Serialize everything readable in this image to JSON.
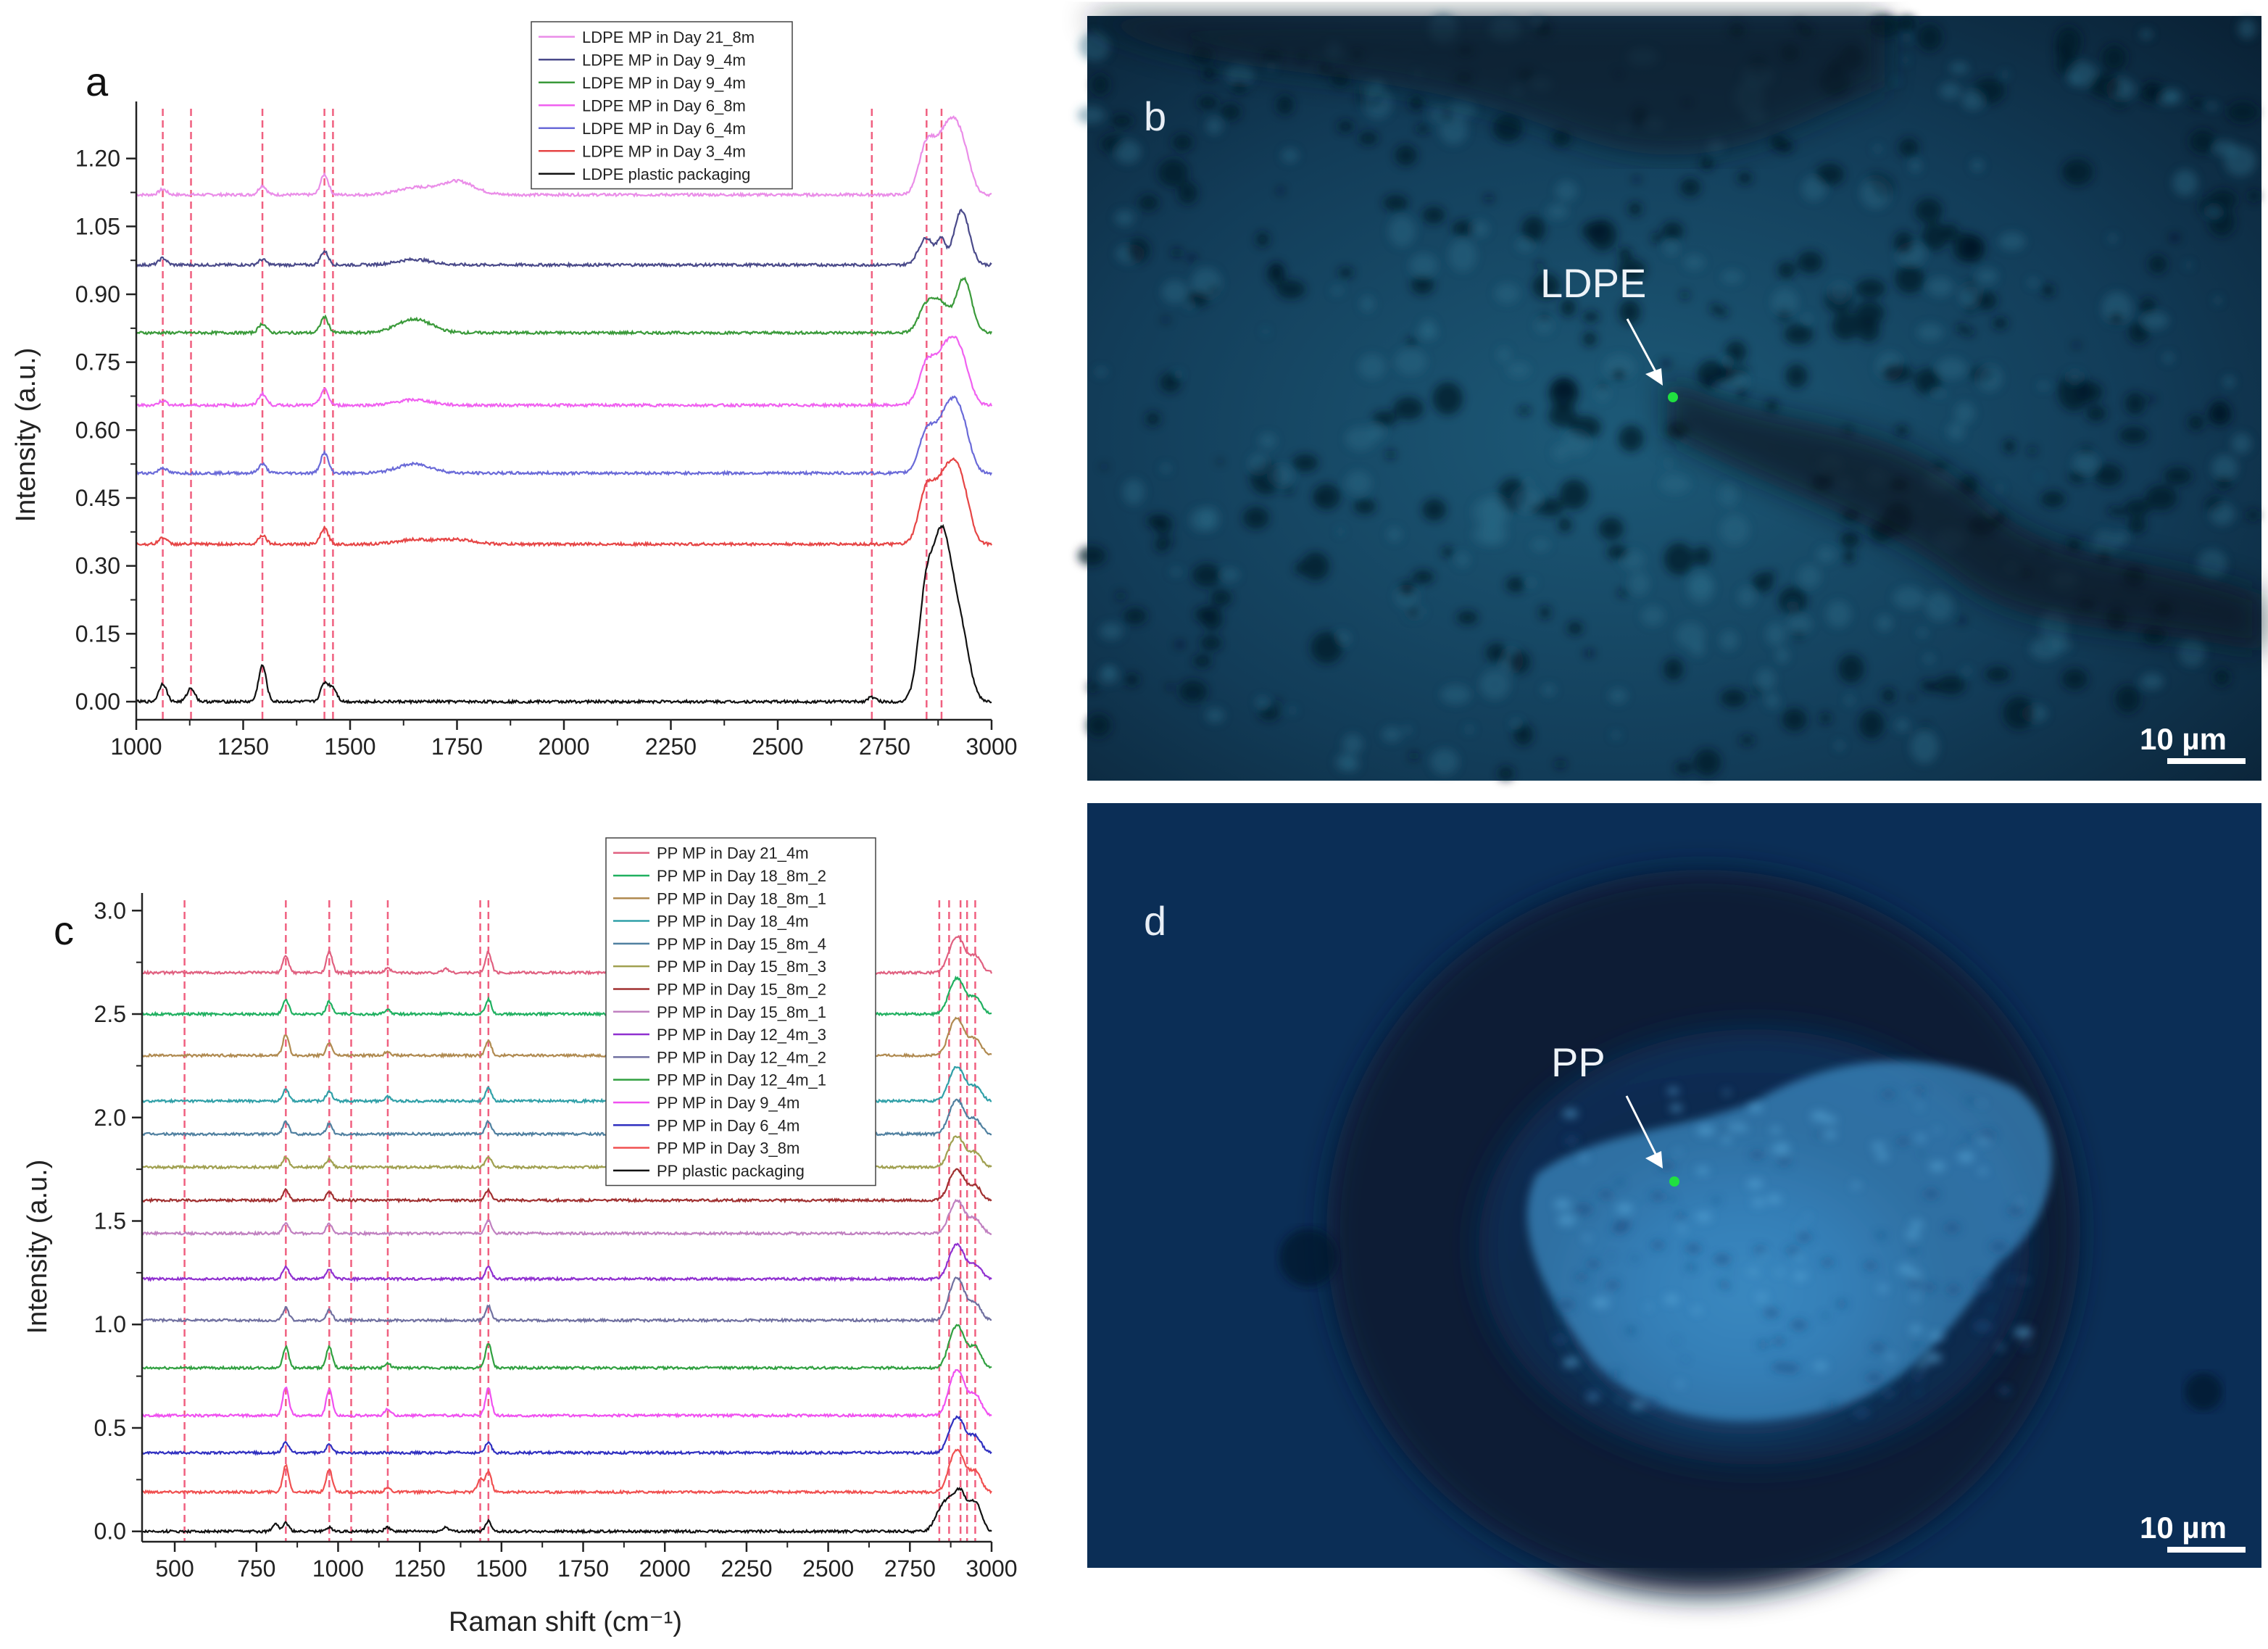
{
  "chart_data": [
    {
      "panel": "a",
      "type": "line",
      "ylabel": "Intensity (a.u.)",
      "xlim": [
        1000,
        3000
      ],
      "ylim": [
        -0.04,
        1.31
      ],
      "xticks": [
        "1000",
        "1250",
        "1500",
        "1750",
        "2000",
        "2250",
        "2500",
        "2750",
        "3000"
      ],
      "yticks": [
        "0.00",
        "0.15",
        "0.30",
        "0.45",
        "0.60",
        "0.75",
        "0.90",
        "1.05",
        "1.20"
      ],
      "reference_lines": [
        1062,
        1128,
        1295,
        1440,
        1460,
        2720,
        2848,
        2883
      ],
      "legend_position": "top-center",
      "series": [
        {
          "name": "LDPE MP in Day 21_8m",
          "color": "#ea8de8",
          "baseline": 1.12,
          "peaks": [
            [
              1062,
              0.012
            ],
            [
              1295,
              0.02
            ],
            [
              1440,
              0.045
            ],
            [
              1650,
              0.015
            ],
            [
              1750,
              0.03
            ],
            [
              2848,
              0.11
            ],
            [
              2883,
              0.09
            ],
            [
              2910,
              0.11
            ],
            [
              2935,
              0.08
            ]
          ]
        },
        {
          "name": "LDPE MP in Day 9_4m",
          "color": "#4a4a8a",
          "baseline": 0.965,
          "peaks": [
            [
              1062,
              0.015
            ],
            [
              1295,
              0.012
            ],
            [
              1440,
              0.03
            ],
            [
              1650,
              0.012
            ],
            [
              2848,
              0.06
            ],
            [
              2883,
              0.05
            ],
            [
              2930,
              0.12
            ]
          ]
        },
        {
          "name": "LDPE MP in Day 9_4m",
          "color": "#3a9a3a",
          "baseline": 0.815,
          "peaks": [
            [
              1295,
              0.02
            ],
            [
              1440,
              0.035
            ],
            [
              1650,
              0.03
            ],
            [
              2848,
              0.06
            ],
            [
              2883,
              0.06
            ],
            [
              2935,
              0.12
            ]
          ]
        },
        {
          "name": "LDPE MP in Day 6_8m",
          "color": "#f060f0",
          "baseline": 0.655,
          "peaks": [
            [
              1062,
              0.01
            ],
            [
              1295,
              0.025
            ],
            [
              1440,
              0.035
            ],
            [
              1650,
              0.012
            ],
            [
              2848,
              0.09
            ],
            [
              2883,
              0.08
            ],
            [
              2910,
              0.1
            ],
            [
              2935,
              0.07
            ]
          ]
        },
        {
          "name": "LDPE MP in Day 6_4m",
          "color": "#6a6ad8",
          "baseline": 0.505,
          "peaks": [
            [
              1062,
              0.012
            ],
            [
              1295,
              0.02
            ],
            [
              1440,
              0.045
            ],
            [
              1650,
              0.02
            ],
            [
              2848,
              0.09
            ],
            [
              2883,
              0.08
            ],
            [
              2910,
              0.11
            ],
            [
              2935,
              0.08
            ]
          ]
        },
        {
          "name": "LDPE MP in Day 3_4m",
          "color": "#e64545",
          "baseline": 0.348,
          "peaks": [
            [
              1062,
              0.015
            ],
            [
              1295,
              0.02
            ],
            [
              1440,
              0.035
            ],
            [
              1650,
              0.01
            ],
            [
              1750,
              0.01
            ],
            [
              2848,
              0.12
            ],
            [
              2883,
              0.1
            ],
            [
              2910,
              0.12
            ],
            [
              2935,
              0.09
            ]
          ]
        },
        {
          "name": "LDPE plastic packaging",
          "color": "#111111",
          "baseline": 0.0,
          "peaks": [
            [
              1062,
              0.04
            ],
            [
              1128,
              0.03
            ],
            [
              1295,
              0.08
            ],
            [
              1440,
              0.04
            ],
            [
              1460,
              0.03
            ],
            [
              2720,
              0.01
            ],
            [
              2848,
              0.25
            ],
            [
              2883,
              0.3
            ],
            [
              2910,
              0.15
            ],
            [
              2935,
              0.1
            ]
          ]
        }
      ]
    },
    {
      "panel": "c",
      "type": "line",
      "xlabel": "Raman shift (cm⁻¹)",
      "ylabel": "Intensity (a.u.)",
      "xlim": [
        400,
        3000
      ],
      "ylim": [
        -0.05,
        3.05
      ],
      "xticks": [
        "500",
        "750",
        "1000",
        "1250",
        "1500",
        "1750",
        "2000",
        "2250",
        "2500",
        "2750",
        "3000"
      ],
      "yticks": [
        "0.0",
        "0.5",
        "1.0",
        "1.5",
        "2.0",
        "2.5",
        "3.0"
      ],
      "reference_lines": [
        530,
        840,
        973,
        1040,
        1152,
        1435,
        1460,
        2840,
        2870,
        2905,
        2925,
        2950
      ],
      "legend_position": "top-center",
      "series": [
        {
          "name": "PP MP in Day 21_4m",
          "color": "#e06080",
          "baseline": 2.7,
          "peaks": [
            [
              840,
              0.08
            ],
            [
              973,
              0.1
            ],
            [
              1152,
              0.02
            ],
            [
              1330,
              0.02
            ],
            [
              1460,
              0.1
            ],
            [
              2880,
              0.1
            ],
            [
              2905,
              0.12
            ],
            [
              2950,
              0.08
            ]
          ]
        },
        {
          "name": "PP MP in Day 18_8m_2",
          "color": "#20b060",
          "baseline": 2.5,
          "peaks": [
            [
              840,
              0.07
            ],
            [
              973,
              0.06
            ],
            [
              1152,
              0.02
            ],
            [
              1460,
              0.07
            ],
            [
              2880,
              0.1
            ],
            [
              2905,
              0.12
            ],
            [
              2950,
              0.08
            ]
          ]
        },
        {
          "name": "PP MP in Day 18_8m_1",
          "color": "#b08a50",
          "baseline": 2.3,
          "peaks": [
            [
              840,
              0.1
            ],
            [
              973,
              0.06
            ],
            [
              1152,
              0.02
            ],
            [
              1460,
              0.07
            ],
            [
              2880,
              0.11
            ],
            [
              2905,
              0.12
            ],
            [
              2950,
              0.08
            ]
          ]
        },
        {
          "name": "PP MP in Day 18_4m",
          "color": "#30a0a8",
          "baseline": 2.08,
          "peaks": [
            [
              840,
              0.06
            ],
            [
              973,
              0.05
            ],
            [
              1152,
              0.02
            ],
            [
              1460,
              0.06
            ],
            [
              2880,
              0.1
            ],
            [
              2905,
              0.11
            ],
            [
              2950,
              0.07
            ]
          ]
        },
        {
          "name": "PP MP in Day 15_8m_4",
          "color": "#5080a0",
          "baseline": 1.92,
          "peaks": [
            [
              840,
              0.06
            ],
            [
              973,
              0.05
            ],
            [
              1460,
              0.06
            ],
            [
              2880,
              0.1
            ],
            [
              2905,
              0.11
            ],
            [
              2950,
              0.07
            ]
          ]
        },
        {
          "name": "PP MP in Day 15_8m_3",
          "color": "#a0a050",
          "baseline": 1.76,
          "peaks": [
            [
              840,
              0.05
            ],
            [
              973,
              0.04
            ],
            [
              1460,
              0.05
            ],
            [
              2880,
              0.09
            ],
            [
              2905,
              0.1
            ],
            [
              2950,
              0.07
            ]
          ]
        },
        {
          "name": "PP MP in Day 15_8m_2",
          "color": "#a03030",
          "baseline": 1.6,
          "peaks": [
            [
              840,
              0.05
            ],
            [
              973,
              0.04
            ],
            [
              1460,
              0.05
            ],
            [
              2880,
              0.09
            ],
            [
              2905,
              0.1
            ],
            [
              2950,
              0.07
            ]
          ]
        },
        {
          "name": "PP MP in Day 15_8m_1",
          "color": "#c080c0",
          "baseline": 1.44,
          "peaks": [
            [
              840,
              0.05
            ],
            [
              973,
              0.05
            ],
            [
              1460,
              0.06
            ],
            [
              2880,
              0.09
            ],
            [
              2905,
              0.11
            ],
            [
              2950,
              0.07
            ]
          ]
        },
        {
          "name": "PP MP in Day 12_4m_3",
          "color": "#9030d0",
          "baseline": 1.22,
          "peaks": [
            [
              840,
              0.06
            ],
            [
              973,
              0.05
            ],
            [
              1460,
              0.06
            ],
            [
              2880,
              0.1
            ],
            [
              2905,
              0.11
            ],
            [
              2950,
              0.07
            ]
          ]
        },
        {
          "name": "PP MP in Day 12_4m_2",
          "color": "#7070a0",
          "baseline": 1.02,
          "peaks": [
            [
              840,
              0.06
            ],
            [
              973,
              0.05
            ],
            [
              1460,
              0.07
            ],
            [
              2880,
              0.12
            ],
            [
              2905,
              0.14
            ],
            [
              2950,
              0.08
            ]
          ]
        },
        {
          "name": "PP MP in Day 12_4m_1",
          "color": "#30a040",
          "baseline": 0.79,
          "peaks": [
            [
              840,
              0.1
            ],
            [
              973,
              0.1
            ],
            [
              1152,
              0.02
            ],
            [
              1460,
              0.12
            ],
            [
              2880,
              0.12
            ],
            [
              2905,
              0.14
            ],
            [
              2950,
              0.1
            ]
          ]
        },
        {
          "name": "PP MP in Day 9_4m",
          "color": "#f050f0",
          "baseline": 0.56,
          "peaks": [
            [
              840,
              0.14
            ],
            [
              973,
              0.13
            ],
            [
              1152,
              0.03
            ],
            [
              1460,
              0.13
            ],
            [
              2880,
              0.13
            ],
            [
              2905,
              0.15
            ],
            [
              2950,
              0.1
            ]
          ]
        },
        {
          "name": "PP MP in Day 6_4m",
          "color": "#3030c0",
          "baseline": 0.38,
          "peaks": [
            [
              840,
              0.05
            ],
            [
              973,
              0.04
            ],
            [
              1460,
              0.05
            ],
            [
              2880,
              0.1
            ],
            [
              2905,
              0.12
            ],
            [
              2950,
              0.08
            ]
          ]
        },
        {
          "name": "PP MP in Day 3_8m",
          "color": "#f05050",
          "baseline": 0.19,
          "peaks": [
            [
              840,
              0.13
            ],
            [
              973,
              0.11
            ],
            [
              1152,
              0.02
            ],
            [
              1435,
              0.06
            ],
            [
              1460,
              0.1
            ],
            [
              2880,
              0.12
            ],
            [
              2905,
              0.14
            ],
            [
              2950,
              0.1
            ]
          ]
        },
        {
          "name": "PP plastic packaging",
          "color": "#111111",
          "baseline": 0.0,
          "peaks": [
            [
              808,
              0.04
            ],
            [
              840,
              0.04
            ],
            [
              973,
              0.02
            ],
            [
              1152,
              0.02
            ],
            [
              1330,
              0.02
            ],
            [
              1460,
              0.05
            ],
            [
              2840,
              0.08
            ],
            [
              2870,
              0.12
            ],
            [
              2905,
              0.18
            ],
            [
              2950,
              0.14
            ]
          ]
        }
      ]
    }
  ],
  "panels": {
    "a": {
      "letter": "a"
    },
    "b": {
      "letter": "b",
      "label": "LDPE",
      "scale": "10 µm"
    },
    "c": {
      "letter": "c"
    },
    "d": {
      "letter": "d",
      "label": "PP",
      "scale": "10 µm"
    }
  },
  "colors": {
    "ref_line": "#f06080",
    "photo_bg_b": "#10324a",
    "photo_bg_d": "#0a2440",
    "particle_marker": "#20e040"
  }
}
